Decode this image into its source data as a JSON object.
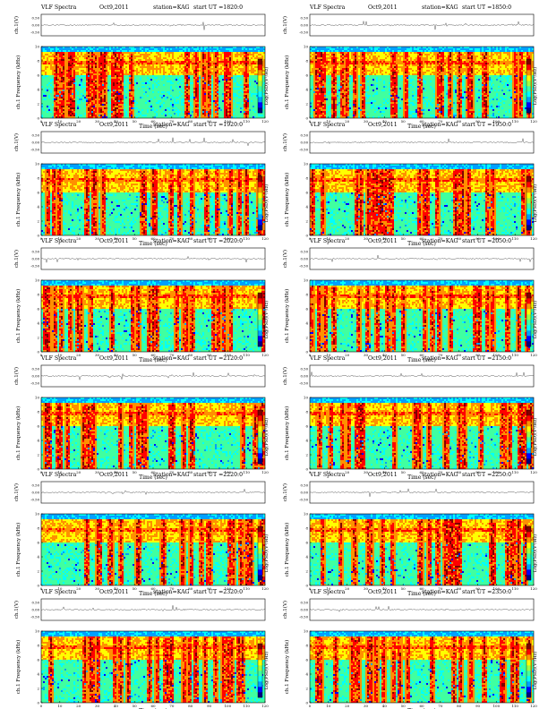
{
  "colors": {
    "colorbar": [
      "#000080",
      "#0000ff",
      "#00a0ff",
      "#00ffff",
      "#40ffa0",
      "#a0ff40",
      "#ffff00",
      "#ff9000",
      "#ff0000",
      "#800000"
    ],
    "waveform": "#333333",
    "frame": "#000000"
  },
  "chart_data": [
    {
      "type": "heatmap",
      "app_title": "VLF Spectra",
      "date": "Oct9,2011",
      "station": "station=KAG",
      "start_label": "start  UT",
      "start_value": "=1820:0",
      "ylabel_top": "ch.1(V)",
      "ylabel_spec": "ch.1 Frequency (kHz)",
      "xlabel": "Time  (sec)",
      "colorbar_label": "Log(PSD)(V²/Hz)",
      "x_ticks": [
        "0",
        "10",
        "20",
        "30",
        "40",
        "50",
        "60",
        "70",
        "80",
        "90",
        "100",
        "110",
        "120"
      ],
      "y_ticks": [
        "0",
        "2",
        "4",
        "6",
        "8",
        "10"
      ],
      "wave_ticks": [
        "0.50",
        "0.00",
        "-0.50"
      ],
      "xlim": [
        0,
        120
      ],
      "ylim": [
        0,
        10
      ]
    },
    {
      "type": "heatmap",
      "app_title": "VLF Spectra",
      "date": "Oct9,2011",
      "station": "station=KAG",
      "start_label": "start  UT",
      "start_value": "=1850:0",
      "ylabel_top": "ch.1(V)",
      "ylabel_spec": "ch.1 Frequency (kHz)",
      "xlabel": "Time  (sec)",
      "colorbar_label": "Log(PSD)(V²/Hz)",
      "x_ticks": [
        "0",
        "10",
        "20",
        "30",
        "40",
        "50",
        "60",
        "70",
        "80",
        "90",
        "100",
        "110",
        "120"
      ],
      "y_ticks": [
        "0",
        "2",
        "4",
        "6",
        "8",
        "10"
      ],
      "wave_ticks": [
        "0.50",
        "0.00",
        "-0.50"
      ],
      "xlim": [
        0,
        120
      ],
      "ylim": [
        0,
        10
      ]
    },
    {
      "type": "heatmap",
      "app_title": "VLF Spectra",
      "date": "Oct9,2011",
      "station": "station=KAG",
      "start_label": "start  UT",
      "start_value": "=1920:0",
      "ylabel_top": "ch.1(V)",
      "ylabel_spec": "ch.1 Frequency (kHz)",
      "xlabel": "Time  (sec)",
      "colorbar_label": "Log(PSD)(V²/Hz)",
      "x_ticks": [
        "0",
        "10",
        "20",
        "30",
        "40",
        "50",
        "60",
        "70",
        "80",
        "90",
        "100",
        "110",
        "120"
      ],
      "y_ticks": [
        "0",
        "2",
        "4",
        "6",
        "8",
        "10"
      ],
      "wave_ticks": [
        "0.50",
        "0.00",
        "-0.50"
      ],
      "xlim": [
        0,
        120
      ],
      "ylim": [
        0,
        10
      ]
    },
    {
      "type": "heatmap",
      "app_title": "VLF Spectra",
      "date": "Oct9,2011",
      "station": "station=KAG",
      "start_label": "start  UT",
      "start_value": "=1950:0",
      "ylabel_top": "ch.1(V)",
      "ylabel_spec": "ch.1 Frequency (kHz)",
      "xlabel": "Time  (sec)",
      "colorbar_label": "Log(PSD)(V²/Hz)",
      "x_ticks": [
        "0",
        "10",
        "20",
        "30",
        "40",
        "50",
        "60",
        "70",
        "80",
        "90",
        "100",
        "110",
        "120"
      ],
      "y_ticks": [
        "0",
        "2",
        "4",
        "6",
        "8",
        "10"
      ],
      "wave_ticks": [
        "0.50",
        "0.00",
        "-0.50"
      ],
      "xlim": [
        0,
        120
      ],
      "ylim": [
        0,
        10
      ]
    },
    {
      "type": "heatmap",
      "app_title": "VLF Spectra",
      "date": "Oct9,2011",
      "station": "station=KAG",
      "start_label": "start  UT",
      "start_value": "=2020:0",
      "ylabel_top": "ch.1(V)",
      "ylabel_spec": "ch.1 Frequency (kHz)",
      "xlabel": "Time  (sec)",
      "colorbar_label": "Log(PSD)(V²/Hz)",
      "x_ticks": [
        "0",
        "10",
        "20",
        "30",
        "40",
        "50",
        "60",
        "70",
        "80",
        "90",
        "100",
        "110",
        "120"
      ],
      "y_ticks": [
        "0",
        "2",
        "4",
        "6",
        "8",
        "10"
      ],
      "wave_ticks": [
        "0.50",
        "0.00",
        "-0.50"
      ],
      "xlim": [
        0,
        120
      ],
      "ylim": [
        0,
        10
      ]
    },
    {
      "type": "heatmap",
      "app_title": "VLF Spectra",
      "date": "Oct9,2011",
      "station": "station=KAG",
      "start_label": "start  UT",
      "start_value": "=2050:0",
      "ylabel_top": "ch.1(V)",
      "ylabel_spec": "ch.1 Frequency (kHz)",
      "xlabel": "Time  (sec)",
      "colorbar_label": "Log(PSD)(V²/Hz)",
      "x_ticks": [
        "0",
        "10",
        "20",
        "30",
        "40",
        "50",
        "60",
        "70",
        "80",
        "90",
        "100",
        "110",
        "120"
      ],
      "y_ticks": [
        "0",
        "2",
        "4",
        "6",
        "8",
        "10"
      ],
      "wave_ticks": [
        "0.50",
        "0.00",
        "-0.50"
      ],
      "xlim": [
        0,
        120
      ],
      "ylim": [
        0,
        10
      ]
    },
    {
      "type": "heatmap",
      "app_title": "VLF Spectra",
      "date": "Oct9,2011",
      "station": "station=KAG",
      "start_label": "start  UT",
      "start_value": "=2120:0",
      "ylabel_top": "ch.1(V)",
      "ylabel_spec": "ch.1 Frequency (kHz)",
      "xlabel": "Time  (sec)",
      "colorbar_label": "Log(PSD)(V²/Hz)",
      "x_ticks": [
        "0",
        "10",
        "20",
        "30",
        "40",
        "50",
        "60",
        "70",
        "80",
        "90",
        "100",
        "110",
        "120"
      ],
      "y_ticks": [
        "0",
        "2",
        "4",
        "6",
        "8",
        "10"
      ],
      "wave_ticks": [
        "0.50",
        "0.00",
        "-0.50"
      ],
      "xlim": [
        0,
        120
      ],
      "ylim": [
        0,
        10
      ]
    },
    {
      "type": "heatmap",
      "app_title": "VLF Spectra",
      "date": "Oct9,2011",
      "station": "station=KAG",
      "start_label": "start  UT",
      "start_value": "=2150:0",
      "ylabel_top": "ch.1(V)",
      "ylabel_spec": "ch.1 Frequency (kHz)",
      "xlabel": "Time  (sec)",
      "colorbar_label": "Log(PSD)(V²/Hz)",
      "x_ticks": [
        "0",
        "10",
        "20",
        "30",
        "40",
        "50",
        "60",
        "70",
        "80",
        "90",
        "100",
        "110",
        "120"
      ],
      "y_ticks": [
        "0",
        "2",
        "4",
        "6",
        "8",
        "10"
      ],
      "wave_ticks": [
        "0.50",
        "0.00",
        "-0.50"
      ],
      "xlim": [
        0,
        120
      ],
      "ylim": [
        0,
        10
      ]
    },
    {
      "type": "heatmap",
      "app_title": "VLF Spectra",
      "date": "Oct9,2011",
      "station": "station=KAG",
      "start_label": "start  UT",
      "start_value": "=2220:0",
      "ylabel_top": "ch.1(V)",
      "ylabel_spec": "ch.1 Frequency (kHz)",
      "xlabel": "Time  (sec)",
      "colorbar_label": "Log(PSD)(V²/Hz)",
      "x_ticks": [
        "0",
        "10",
        "20",
        "30",
        "40",
        "50",
        "60",
        "70",
        "80",
        "90",
        "100",
        "110",
        "120"
      ],
      "y_ticks": [
        "0",
        "2",
        "4",
        "6",
        "8",
        "10"
      ],
      "wave_ticks": [
        "0.50",
        "0.00",
        "-0.50"
      ],
      "xlim": [
        0,
        120
      ],
      "ylim": [
        0,
        10
      ]
    },
    {
      "type": "heatmap",
      "app_title": "VLF Spectra",
      "date": "Oct9,2011",
      "station": "station=KAG",
      "start_label": "start  UT",
      "start_value": "=2250:0",
      "ylabel_top": "ch.1(V)",
      "ylabel_spec": "ch.1 Frequency (kHz)",
      "xlabel": "Time  (sec)",
      "colorbar_label": "Log(PSD)(V²/Hz)",
      "x_ticks": [
        "0",
        "10",
        "20",
        "30",
        "40",
        "50",
        "60",
        "70",
        "80",
        "90",
        "100",
        "110",
        "120"
      ],
      "y_ticks": [
        "0",
        "2",
        "4",
        "6",
        "8",
        "10"
      ],
      "wave_ticks": [
        "0.50",
        "0.00",
        "-0.50"
      ],
      "xlim": [
        0,
        120
      ],
      "ylim": [
        0,
        10
      ]
    },
    {
      "type": "heatmap",
      "app_title": "VLF Spectra",
      "date": "Oct9,2011",
      "station": "station=KAG",
      "start_label": "start  UT",
      "start_value": "=2320:0",
      "ylabel_top": "ch.1(V)",
      "ylabel_spec": "ch.1 Frequency (kHz)",
      "xlabel": "Time  (sec)",
      "colorbar_label": "Log(PSD)(V²/Hz)",
      "x_ticks": [
        "0",
        "10",
        "20",
        "30",
        "40",
        "50",
        "60",
        "70",
        "80",
        "90",
        "100",
        "110",
        "120"
      ],
      "y_ticks": [
        "0",
        "2",
        "4",
        "6",
        "8",
        "10"
      ],
      "wave_ticks": [
        "0.50",
        "0.00",
        "-0.50"
      ],
      "xlim": [
        0,
        120
      ],
      "ylim": [
        0,
        10
      ]
    },
    {
      "type": "heatmap",
      "app_title": "VLF Spectra",
      "date": "Oct9,2011",
      "station": "station=KAG",
      "start_label": "start  UT",
      "start_value": "=2350:0",
      "ylabel_top": "ch.1(V)",
      "ylabel_spec": "ch.1 Frequency (kHz)",
      "xlabel": "Time  (sec)",
      "colorbar_label": "Log(PSD)(V²/Hz)",
      "x_ticks": [
        "0",
        "10",
        "20",
        "30",
        "40",
        "50",
        "60",
        "70",
        "80",
        "90",
        "100",
        "110",
        "120"
      ],
      "y_ticks": [
        "0",
        "2",
        "4",
        "6",
        "8",
        "10"
      ],
      "wave_ticks": [
        "0.50",
        "0.00",
        "-0.50"
      ],
      "xlim": [
        0,
        120
      ],
      "ylim": [
        0,
        10
      ]
    }
  ]
}
